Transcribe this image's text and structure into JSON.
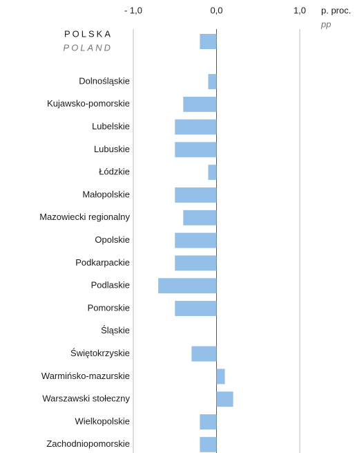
{
  "chart_data": {
    "type": "bar",
    "orientation": "horizontal",
    "categories": [
      "POLSKA",
      "Dolnośląskie",
      "Kujawsko-pomorskie",
      "Lubelskie",
      "Lubuskie",
      "Łódzkie",
      "Małopolskie",
      "Mazowiecki regionalny",
      "Opolskie",
      "Podkarpackie",
      "Podlaskie",
      "Pomorskie",
      "Śląskie",
      "Świętokrzyskie",
      "Warmińsko-mazurskie",
      "Warszawski stołeczny",
      "Wielkopolskie",
      "Zachodniopomorskie"
    ],
    "polska_en": "POLAND",
    "values": [
      -0.2,
      -0.1,
      -0.4,
      -0.5,
      -0.5,
      -0.1,
      -0.5,
      -0.4,
      -0.5,
      -0.5,
      -0.7,
      -0.5,
      0,
      -0.3,
      0.1,
      0.2,
      -0.2,
      -0.2
    ],
    "color": "#94bfe8",
    "xlim": [
      -1.2,
      1.2
    ],
    "xticks": [
      {
        "value": -1,
        "label": "- 1,0"
      },
      {
        "value": 0,
        "label": "0,0"
      },
      {
        "value": 1,
        "label": "1,0"
      }
    ],
    "unit_label": "p. proc.",
    "unit_label_en": "pp",
    "grid": true
  }
}
